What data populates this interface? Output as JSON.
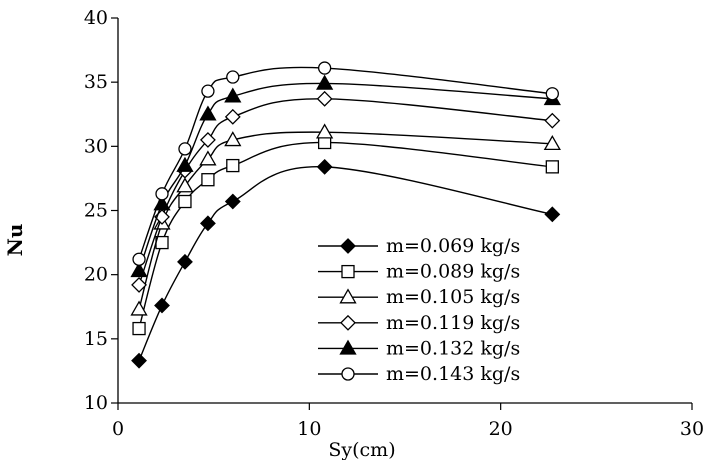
{
  "chart_data": {
    "type": "line",
    "title": "",
    "xlabel": "Sy(cm)",
    "ylabel": "Nu",
    "xlim": [
      0,
      30
    ],
    "ylim": [
      10,
      40
    ],
    "x_ticks": [
      0,
      10,
      20,
      30
    ],
    "y_ticks": [
      10,
      15,
      20,
      25,
      30,
      35,
      40
    ],
    "grid": false,
    "legend_position": "bottom-right",
    "line_color": "#000000",
    "series": [
      {
        "name": "m=0.069 kg/s",
        "marker": "filled-diamond",
        "x": [
          1.1,
          2.3,
          3.5,
          4.7,
          6.0,
          10.8,
          22.7
        ],
        "y": [
          13.3,
          17.6,
          21.0,
          24.0,
          25.7,
          28.4,
          24.7
        ]
      },
      {
        "name": "m=0.089 kg/s",
        "marker": "open-square",
        "x": [
          1.1,
          2.3,
          3.5,
          4.7,
          6.0,
          10.8,
          22.7
        ],
        "y": [
          15.8,
          22.5,
          25.7,
          27.4,
          28.5,
          30.3,
          28.4
        ]
      },
      {
        "name": "m=0.105 kg/s",
        "marker": "open-triangle",
        "x": [
          1.1,
          2.3,
          3.5,
          4.7,
          6.0,
          10.8,
          22.7
        ],
        "y": [
          17.3,
          24.0,
          26.9,
          29.0,
          30.5,
          31.1,
          30.2
        ]
      },
      {
        "name": "m=0.119 kg/s",
        "marker": "open-diamond",
        "x": [
          1.1,
          2.3,
          3.5,
          4.7,
          6.0,
          10.8,
          22.7
        ],
        "y": [
          19.2,
          24.5,
          28.1,
          30.5,
          32.3,
          33.7,
          32.0
        ]
      },
      {
        "name": "m=0.132 kg/s",
        "marker": "filled-triangle",
        "x": [
          1.1,
          2.3,
          3.5,
          4.7,
          6.0,
          10.8,
          22.7
        ],
        "y": [
          20.3,
          25.5,
          28.5,
          32.5,
          33.9,
          34.9,
          33.7
        ]
      },
      {
        "name": "m=0.143 kg/s",
        "marker": "open-circle",
        "x": [
          1.1,
          2.3,
          3.5,
          4.7,
          6.0,
          10.8,
          22.7
        ],
        "y": [
          21.2,
          26.3,
          29.8,
          34.3,
          35.4,
          36.1,
          34.1
        ]
      }
    ]
  }
}
